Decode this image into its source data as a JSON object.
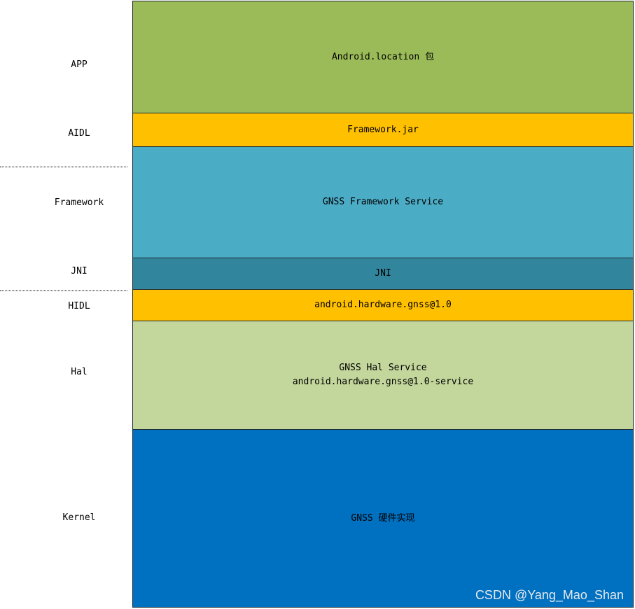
{
  "labels": {
    "app": "APP",
    "aidl": "AIDL",
    "framework": "Framework",
    "jni": "JNI",
    "hidl": "HIDL",
    "hal": "Hal",
    "kernel": "Kernel"
  },
  "layers": {
    "app": {
      "text": "Android.location 包",
      "color": "#9bbb59"
    },
    "aidl": {
      "text": "Framework.jar",
      "color": "#ffc000"
    },
    "framework": {
      "text": "GNSS Framework Service",
      "color": "#4bacc6"
    },
    "jni": {
      "text": "JNI",
      "color": "#31859c"
    },
    "hidl": {
      "text": "android.hardware.gnss@1.0",
      "color": "#ffc000"
    },
    "hal": {
      "line1": "GNSS Hal Service",
      "line2": "android.hardware.gnss@1.0-service",
      "color": "#c3d69b"
    },
    "kernel": {
      "text": "GNSS 硬件实现",
      "color": "#0070c0"
    }
  },
  "watermark": "CSDN @Yang_Mao_Shan"
}
